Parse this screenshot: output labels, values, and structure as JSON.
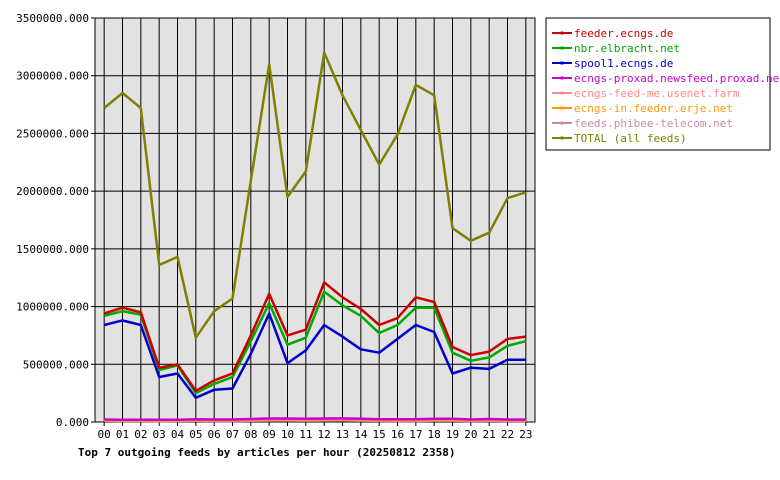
{
  "chart_data": {
    "type": "line",
    "title": "Top 7 outgoing feeds by articles per hour (20250812 2358)",
    "x": [
      "00",
      "01",
      "02",
      "03",
      "04",
      "05",
      "06",
      "07",
      "08",
      "09",
      "10",
      "11",
      "12",
      "13",
      "14",
      "15",
      "16",
      "17",
      "18",
      "19",
      "20",
      "21",
      "22",
      "23"
    ],
    "yticks": [
      "0.000",
      "500000.000",
      "1000000.000",
      "1500000.000",
      "2000000.000",
      "2500000.000",
      "3000000.000",
      "3500000.000"
    ],
    "ylim": [
      0,
      3500000
    ],
    "grid": true,
    "legend_position": "top-right",
    "series": [
      {
        "name": "feeder.ecngs.de",
        "color": "#cc0000",
        "values": [
          940000,
          990000,
          950000,
          470000,
          500000,
          270000,
          360000,
          420000,
          750000,
          1110000,
          750000,
          800000,
          1210000,
          1080000,
          980000,
          840000,
          900000,
          1080000,
          1040000,
          650000,
          580000,
          610000,
          720000,
          740000
        ]
      },
      {
        "name": "nbr.elbracht.net",
        "color": "#00aa00",
        "values": [
          920000,
          960000,
          930000,
          450000,
          490000,
          250000,
          330000,
          390000,
          700000,
          1030000,
          670000,
          730000,
          1130000,
          1010000,
          920000,
          770000,
          840000,
          990000,
          990000,
          600000,
          530000,
          560000,
          660000,
          700000
        ]
      },
      {
        "name": "spool1.ecngs.de",
        "color": "#0000cc",
        "values": [
          840000,
          880000,
          840000,
          390000,
          420000,
          210000,
          280000,
          290000,
          590000,
          940000,
          510000,
          620000,
          840000,
          740000,
          630000,
          600000,
          720000,
          840000,
          780000,
          420000,
          470000,
          460000,
          540000,
          540000
        ]
      },
      {
        "name": "ecngs-proxad.newsfeed.proxad.net",
        "color": "#cc00cc",
        "values": [
          22000,
          20000,
          20000,
          19000,
          20000,
          24000,
          22000,
          22000,
          26000,
          30000,
          30000,
          29000,
          30000,
          31000,
          29000,
          24000,
          23000,
          23000,
          28000,
          28000,
          22000,
          26000,
          22000,
          21000
        ]
      },
      {
        "name": "ecngs-feed-me.usenet.farm",
        "color": "#ff8888",
        "values": [
          18000,
          16000,
          16000,
          15000,
          16000,
          19000,
          17000,
          17000,
          21000,
          24000,
          24000,
          23000,
          24000,
          25000,
          23000,
          19000,
          18000,
          18000,
          22000,
          22000,
          18000,
          21000,
          18000,
          17000
        ]
      },
      {
        "name": "ecngs-in.feeder.erje.net",
        "color": "#ff9900",
        "values": [
          14000,
          12000,
          12000,
          11000,
          12000,
          14000,
          13000,
          13000,
          16000,
          18000,
          18000,
          17000,
          18000,
          19000,
          17000,
          14000,
          13000,
          13000,
          16000,
          16000,
          13000,
          15000,
          13000,
          12000
        ]
      },
      {
        "name": "feeds.phibee-telecom.net",
        "color": "#cc88aa",
        "values": [
          10000,
          9000,
          9000,
          8000,
          9000,
          10000,
          9000,
          9000,
          11000,
          13000,
          13000,
          12000,
          13000,
          14000,
          12000,
          10000,
          9000,
          9000,
          12000,
          12000,
          9000,
          11000,
          9000,
          9000
        ]
      },
      {
        "name": "TOTAL (all feeds)",
        "color": "#808000",
        "values": [
          2720000,
          2850000,
          2720000,
          1360000,
          1430000,
          730000,
          960000,
          1070000,
          2090000,
          3100000,
          1950000,
          2170000,
          3200000,
          2830000,
          2530000,
          2230000,
          2490000,
          2920000,
          2830000,
          1680000,
          1570000,
          1640000,
          1940000,
          1990000
        ]
      }
    ]
  }
}
